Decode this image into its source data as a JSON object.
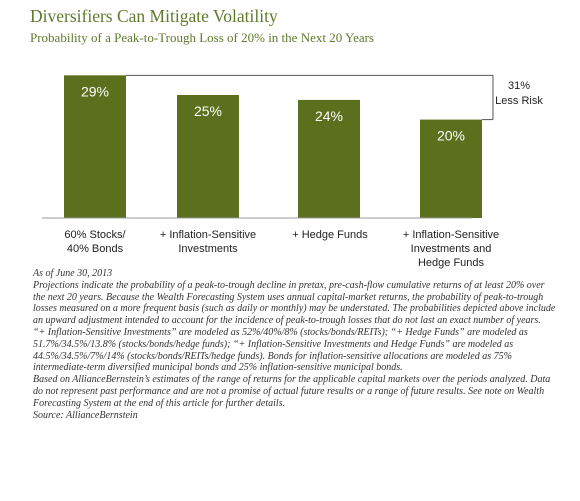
{
  "title": "Diversifiers Can Mitigate Volatility",
  "subtitle": "Probability of a Peak-to-Trough Loss of 20% in the Next 20 Years",
  "colors": {
    "bar": "#5c6f1c",
    "title": "#5f7a2a",
    "bar_label": "#ffffff"
  },
  "chart_data": {
    "type": "bar",
    "categories": [
      [
        "60% Stocks/",
        "40% Bonds"
      ],
      [
        "+ Inflation-Sensitive",
        "Investments"
      ],
      [
        "+ Hedge Funds"
      ],
      [
        "+ Inflation-Sensitive",
        "Investments and",
        "Hedge Funds"
      ]
    ],
    "values": [
      29,
      25,
      24,
      20
    ],
    "value_labels": [
      "29%",
      "25%",
      "24%",
      "20%"
    ],
    "ylim": [
      0,
      30
    ],
    "grid": false,
    "annotation": {
      "text_line1": "31%",
      "text_line2": "Less Risk",
      "from_category": 0,
      "to_category": 3
    }
  },
  "notes": [
    "As of June 30, 2013",
    "Projections indicate the probability of a peak-to-trough decline in pretax, pre-cash-flow cumulative returns of at least 20% over the next 20 years. Because the Wealth Forecasting System uses annual capital-market returns, the probability of peak-to-trough losses measured on a more frequent basis (such as daily or monthly) may be understated. The probabilities depicted above include an upward adjustment intended to account for the incidence of peak-to-trough losses that do not last an exact number of years.",
    "“+ Inflation-Sensitive Investments” are modeled as 52%/40%/8% (stocks/bonds/REITs); “+ Hedge Funds” are modeled as 51.7%/34.5%/13.8% (stocks/bonds/hedge funds); “+ Inflation-Sensitive Investments and Hedge Funds” are modeled as 44.5%/34.5%/7%/14% (stocks/bonds/REITs/hedge funds). Bonds for inflation-sensitive allocations are modeled as 75% intermediate-term diversified municipal bonds and 25% inflation-sensitive municipal bonds.",
    "Based on AllianceBernstein’s estimates of the range of returns for the applicable capital markets over the periods analyzed. Data do not represent past performance and are not a promise of actual future results or a range of future results. See note on Wealth Forecasting System at the end of this article for further details.",
    "Source: AllianceBernstein"
  ]
}
